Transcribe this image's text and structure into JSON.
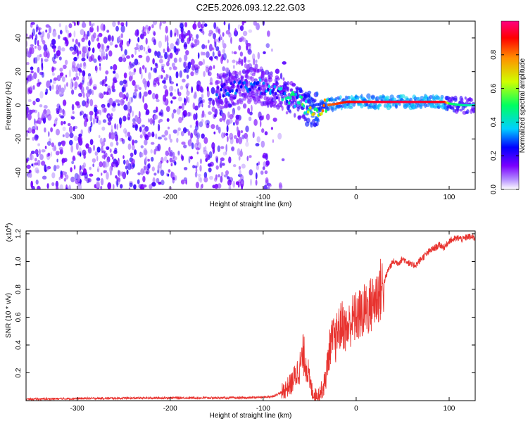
{
  "title": "C2E5.2026.093.12.22.G03",
  "chart_data": [
    {
      "type": "heatmap",
      "title": "C2E5.2026.093.12.22.G03",
      "xlabel": "Height of straight line (km)",
      "ylabel": "Frequency (Hz)",
      "xlim": [
        -355,
        128
      ],
      "ylim": [
        -50,
        50
      ],
      "xticks": [
        -300,
        -200,
        -100,
        0,
        100
      ],
      "xtick_labels": [
        "-300",
        "-200",
        "-100",
        "0",
        "100"
      ],
      "yticks": [
        -40,
        -20,
        0,
        20,
        40
      ],
      "ytick_labels": [
        "-40",
        "-20",
        "0",
        "20",
        "40"
      ],
      "colorbar": {
        "label": "Normalized spectral amplitude",
        "range": [
          0,
          1
        ],
        "ticks": [
          0.0,
          0.2,
          0.4,
          0.6,
          0.8
        ],
        "tick_labels": [
          "0.0",
          "0.2",
          "0.4",
          "0.6",
          "0.8"
        ],
        "colors": [
          "#ffffff",
          "#7a00ff",
          "#0000ff",
          "#00d0ff",
          "#00ff60",
          "#d0ff00",
          "#ff9000",
          "#ff0000",
          "#ff0080"
        ]
      },
      "noise_region": {
        "x_range": [
          -355,
          -90
        ],
        "amplitude": 0.2,
        "density": 0.55
      },
      "signal_track": [
        {
          "x": -150,
          "freq": 8,
          "amp": 0.3
        },
        {
          "x": -130,
          "freq": 10,
          "amp": 0.3
        },
        {
          "x": -110,
          "freq": 12,
          "amp": 0.32
        },
        {
          "x": -95,
          "freq": 10,
          "amp": 0.35
        },
        {
          "x": -80,
          "freq": 7,
          "amp": 0.4
        },
        {
          "x": -70,
          "freq": 4,
          "amp": 0.45
        },
        {
          "x": -60,
          "freq": 2,
          "amp": 0.5
        },
        {
          "x": -55,
          "freq": -1,
          "amp": 0.55
        },
        {
          "x": -48,
          "freq": -3,
          "amp": 0.7
        },
        {
          "x": -40,
          "freq": -2,
          "amp": 0.75
        },
        {
          "x": -32,
          "freq": 0,
          "amp": 0.8
        },
        {
          "x": -20,
          "freq": 1,
          "amp": 0.85
        },
        {
          "x": -10,
          "freq": 2,
          "amp": 0.9
        },
        {
          "x": 0,
          "freq": 2,
          "amp": 0.92
        },
        {
          "x": 50,
          "freq": 2,
          "amp": 0.95
        },
        {
          "x": 95,
          "freq": 2,
          "amp": 0.92
        },
        {
          "x": 100,
          "freq": 1,
          "amp": 0.5
        },
        {
          "x": 115,
          "freq": 0,
          "amp": 0.45
        },
        {
          "x": 128,
          "freq": 0,
          "amp": 0.4
        }
      ]
    },
    {
      "type": "line",
      "xlabel": "Height of straight line (km)",
      "ylabel": "SNR (10 * v/v)",
      "y_multiplier": "(x10",
      "y_multiplier_exp": "4",
      "xlim": [
        -355,
        128
      ],
      "ylim": [
        0,
        1.22
      ],
      "xticks": [
        -300,
        -200,
        -100,
        0,
        100
      ],
      "xtick_labels": [
        "-300",
        "-200",
        "-100",
        "0",
        "100"
      ],
      "yticks": [
        0.2,
        0.4,
        0.6,
        0.8,
        1.0,
        1.2
      ],
      "ytick_labels": [
        "0.2",
        "0.4",
        "0.6",
        "0.8",
        "1.0",
        "1.2"
      ],
      "series": [
        {
          "name": "SNR",
          "color": "#e8332f",
          "x": [
            -355,
            -300,
            -200,
            -120,
            -100,
            -90,
            -80,
            -70,
            -65,
            -60,
            -57,
            -55,
            -52,
            -50,
            -47,
            -44,
            -40,
            -35,
            -32,
            -28,
            -25,
            -22,
            -20,
            -15,
            -10,
            -5,
            0,
            5,
            10,
            15,
            20,
            25,
            30,
            35,
            40,
            45,
            50,
            55,
            60,
            65,
            70,
            75,
            80,
            85,
            90,
            95,
            100,
            105,
            110,
            115,
            120,
            128
          ],
          "y": [
            0.01,
            0.015,
            0.02,
            0.02,
            0.025,
            0.03,
            0.06,
            0.12,
            0.18,
            0.25,
            0.33,
            0.3,
            0.22,
            0.13,
            0.06,
            0.04,
            0.05,
            0.1,
            0.2,
            0.4,
            0.45,
            0.42,
            0.5,
            0.55,
            0.5,
            0.58,
            0.6,
            0.62,
            0.65,
            0.68,
            0.72,
            0.78,
            0.85,
            0.95,
            1.0,
            0.99,
            1.02,
            1.0,
            0.97,
            0.98,
            1.02,
            1.05,
            1.08,
            1.1,
            1.12,
            1.1,
            1.15,
            1.16,
            1.17,
            1.16,
            1.18,
            1.17
          ]
        }
      ]
    }
  ]
}
